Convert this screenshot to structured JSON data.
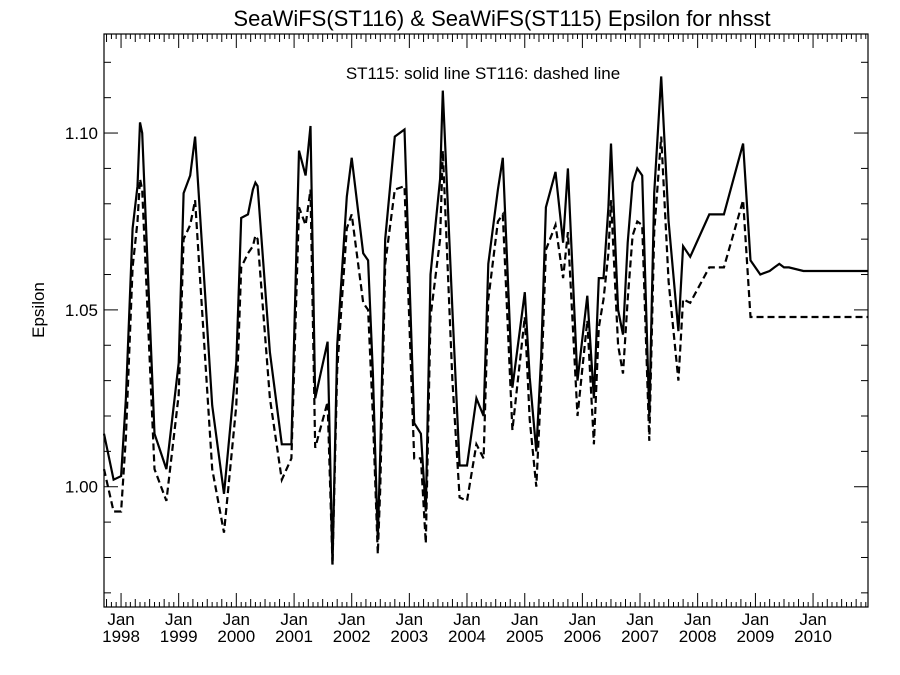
{
  "chart_data": {
    "type": "line",
    "title": "SeaWiFS(ST116) & SeaWiFS(ST115)  Epsilon for nhsst",
    "xlabel": "",
    "ylabel": "Epsilon",
    "annotation": "ST115: solid line   ST116: dashed line",
    "ylim": [
      0.966,
      1.128
    ],
    "xlim": [
      "1997-09-15",
      "2010-12-15"
    ],
    "yticks": [
      "1.00",
      "1.05",
      "1.10"
    ],
    "xtick_month": "Jan",
    "xtick_years": [
      "1998",
      "1999",
      "2000",
      "2001",
      "2002",
      "2003",
      "2004",
      "2005",
      "2006",
      "2007",
      "2008",
      "2009",
      "2010"
    ],
    "series": [
      {
        "name": "ST115",
        "style": "solid",
        "x": [
          "1997-09-15",
          "1997-11-15",
          "1998-01-01",
          "1998-02-01",
          "1998-03-15",
          "1998-04-15",
          "1998-05-01",
          "1998-05-15",
          "1998-08-01",
          "1998-10-15",
          "1999-01-01",
          "1999-02-01",
          "1999-03-15",
          "1999-04-15",
          "1999-05-15",
          "1999-08-01",
          "1999-10-15",
          "2000-01-01",
          "2000-02-01",
          "2000-03-15",
          "2000-04-15",
          "2000-05-01",
          "2000-05-15",
          "2000-08-01",
          "2000-10-15",
          "2000-12-15",
          "2001-02-01",
          "2001-03-15",
          "2001-04-15",
          "2001-05-15",
          "2001-08-01",
          "2001-09-01",
          "2001-10-01",
          "2001-12-01",
          "2002-01-01",
          "2002-03-15",
          "2002-04-15",
          "2002-05-15",
          "2002-06-15",
          "2002-07-01",
          "2002-08-01",
          "2002-10-01",
          "2002-12-01",
          "2003-02-01",
          "2003-03-15",
          "2003-04-15",
          "2003-05-15",
          "2003-07-15",
          "2003-08-01",
          "2003-10-01",
          "2003-11-15",
          "2004-01-01",
          "2004-03-01",
          "2004-04-15",
          "2004-05-15",
          "2004-07-15",
          "2004-08-15",
          "2004-10-15",
          "2005-01-01",
          "2005-02-01",
          "2005-03-15",
          "2005-04-15",
          "2005-05-15",
          "2005-07-15",
          "2005-09-01",
          "2005-10-01",
          "2005-12-01",
          "2006-02-01",
          "2006-03-15",
          "2006-04-15",
          "2006-05-15",
          "2006-06-15",
          "2006-07-01",
          "2006-08-15",
          "2006-09-15",
          "2006-10-15",
          "2006-11-15",
          "2006-12-15",
          "2007-01-15",
          "2007-03-01",
          "2007-04-01",
          "2007-05-15",
          "2007-07-01",
          "2007-09-01",
          "2007-10-01",
          "2007-11-15",
          "2008-03-15",
          "2008-06-15",
          "2008-10-15",
          "2008-12-01",
          "2009-02-01",
          "2009-04-01",
          "2009-05-01",
          "2009-06-01",
          "2009-07-01",
          "2009-08-01",
          "2009-11-01",
          "2010-01-01",
          "2010-02-01",
          "2010-03-01",
          "2010-04-01",
          "2010-04-15",
          "2010-05-01",
          "2010-07-01",
          "2010-08-01",
          "2010-09-01",
          "2010-10-01",
          "2010-11-01",
          "2010-12-15"
        ],
        "y": [
          1.015,
          1.002,
          1.003,
          1.025,
          1.073,
          1.085,
          1.103,
          1.1,
          1.015,
          1.005,
          1.035,
          1.083,
          1.088,
          1.099,
          1.078,
          1.023,
          0.998,
          1.035,
          1.076,
          1.077,
          1.084,
          1.086,
          1.085,
          1.038,
          1.012,
          1.012,
          1.095,
          1.088,
          1.102,
          1.025,
          1.041,
          0.978,
          1.04,
          1.082,
          1.093,
          1.066,
          1.064,
          1.032,
          0.985,
          1.01,
          1.07,
          1.099,
          1.101,
          1.018,
          1.015,
          0.993,
          1.06,
          1.087,
          1.112,
          1.05,
          1.006,
          1.006,
          1.025,
          1.02,
          1.063,
          1.084,
          1.093,
          1.028,
          1.055,
          1.031,
          1.01,
          1.037,
          1.079,
          1.089,
          1.069,
          1.09,
          1.03,
          1.054,
          1.025,
          1.059,
          1.059,
          1.079,
          1.097,
          1.05,
          1.043,
          1.069,
          1.086,
          1.09,
          1.088,
          1.02,
          1.083,
          1.116,
          1.075,
          1.044,
          1.068,
          1.065,
          1.077,
          1.077,
          1.097,
          1.064,
          1.06,
          1.061,
          1.062,
          1.063,
          1.062,
          1.062,
          1.061,
          1.061,
          1.061,
          1.061,
          1.061,
          1.061,
          1.061,
          1.061,
          1.061,
          1.061,
          1.061,
          1.061,
          1.061
        ]
      },
      {
        "name": "ST116",
        "style": "dashed",
        "x": [
          "1997-09-15",
          "1997-11-15",
          "1998-01-01",
          "1998-02-01",
          "1998-03-15",
          "1998-04-15",
          "1998-05-01",
          "1998-05-15",
          "1998-08-01",
          "1998-10-15",
          "1999-01-01",
          "1999-02-01",
          "1999-03-15",
          "1999-04-15",
          "1999-05-15",
          "1999-08-01",
          "1999-10-15",
          "2000-01-01",
          "2000-02-01",
          "2000-03-15",
          "2000-04-15",
          "2000-05-01",
          "2000-05-15",
          "2000-08-01",
          "2000-10-15",
          "2000-12-15",
          "2001-02-01",
          "2001-03-15",
          "2001-04-15",
          "2001-05-15",
          "2001-08-01",
          "2001-09-01",
          "2001-10-01",
          "2001-12-01",
          "2002-01-01",
          "2002-03-15",
          "2002-04-15",
          "2002-05-15",
          "2002-06-15",
          "2002-07-01",
          "2002-08-01",
          "2002-10-01",
          "2002-12-01",
          "2003-02-01",
          "2003-03-15",
          "2003-04-15",
          "2003-05-15",
          "2003-07-15",
          "2003-08-01",
          "2003-10-01",
          "2003-11-15",
          "2004-01-01",
          "2004-03-01",
          "2004-04-15",
          "2004-05-15",
          "2004-07-15",
          "2004-08-15",
          "2004-10-15",
          "2005-01-01",
          "2005-02-01",
          "2005-03-15",
          "2005-04-15",
          "2005-05-15",
          "2005-07-15",
          "2005-09-01",
          "2005-10-01",
          "2005-12-01",
          "2006-02-01",
          "2006-03-15",
          "2006-04-15",
          "2006-05-15",
          "2006-06-15",
          "2006-07-01",
          "2006-08-15",
          "2006-09-15",
          "2006-10-15",
          "2006-11-15",
          "2006-12-15",
          "2007-01-15",
          "2007-03-01",
          "2007-04-01",
          "2007-05-15",
          "2007-07-01",
          "2007-09-01",
          "2007-10-01",
          "2007-11-15",
          "2008-03-15",
          "2008-06-15",
          "2008-10-15",
          "2008-12-01",
          "2009-02-01",
          "2009-04-01",
          "2009-05-01",
          "2009-06-01",
          "2009-07-01",
          "2009-08-01",
          "2009-11-01",
          "2010-01-01",
          "2010-02-01",
          "2010-03-01",
          "2010-04-01",
          "2010-04-15",
          "2010-05-01",
          "2010-07-01",
          "2010-08-01",
          "2010-09-01",
          "2010-10-01",
          "2010-11-01",
          "2010-12-15"
        ],
        "y": [
          1.005,
          0.993,
          0.993,
          1.014,
          1.062,
          1.075,
          1.087,
          1.084,
          1.005,
          0.996,
          1.026,
          1.07,
          1.074,
          1.081,
          1.06,
          1.005,
          0.987,
          1.023,
          1.062,
          1.066,
          1.068,
          1.071,
          1.07,
          1.025,
          1.002,
          1.008,
          1.079,
          1.074,
          1.084,
          1.011,
          1.024,
          0.978,
          1.033,
          1.073,
          1.077,
          1.052,
          1.05,
          1.02,
          0.981,
          1.0,
          1.063,
          1.084,
          1.085,
          1.008,
          1.008,
          0.984,
          1.048,
          1.07,
          1.095,
          1.03,
          0.997,
          0.996,
          1.012,
          1.008,
          1.053,
          1.075,
          1.077,
          1.016,
          1.048,
          1.019,
          1.0,
          1.029,
          1.067,
          1.074,
          1.059,
          1.072,
          1.02,
          1.047,
          1.012,
          1.045,
          1.053,
          1.066,
          1.081,
          1.04,
          1.032,
          1.053,
          1.071,
          1.075,
          1.074,
          1.013,
          1.072,
          1.099,
          1.058,
          1.03,
          1.053,
          1.052,
          1.062,
          1.062,
          1.081,
          1.048,
          1.048,
          1.048,
          1.048,
          1.048,
          1.048,
          1.048,
          1.048,
          1.048,
          1.048,
          1.048,
          1.048,
          1.048,
          1.048,
          1.048,
          1.048,
          1.048,
          1.048,
          1.048,
          1.048
        ]
      }
    ]
  }
}
